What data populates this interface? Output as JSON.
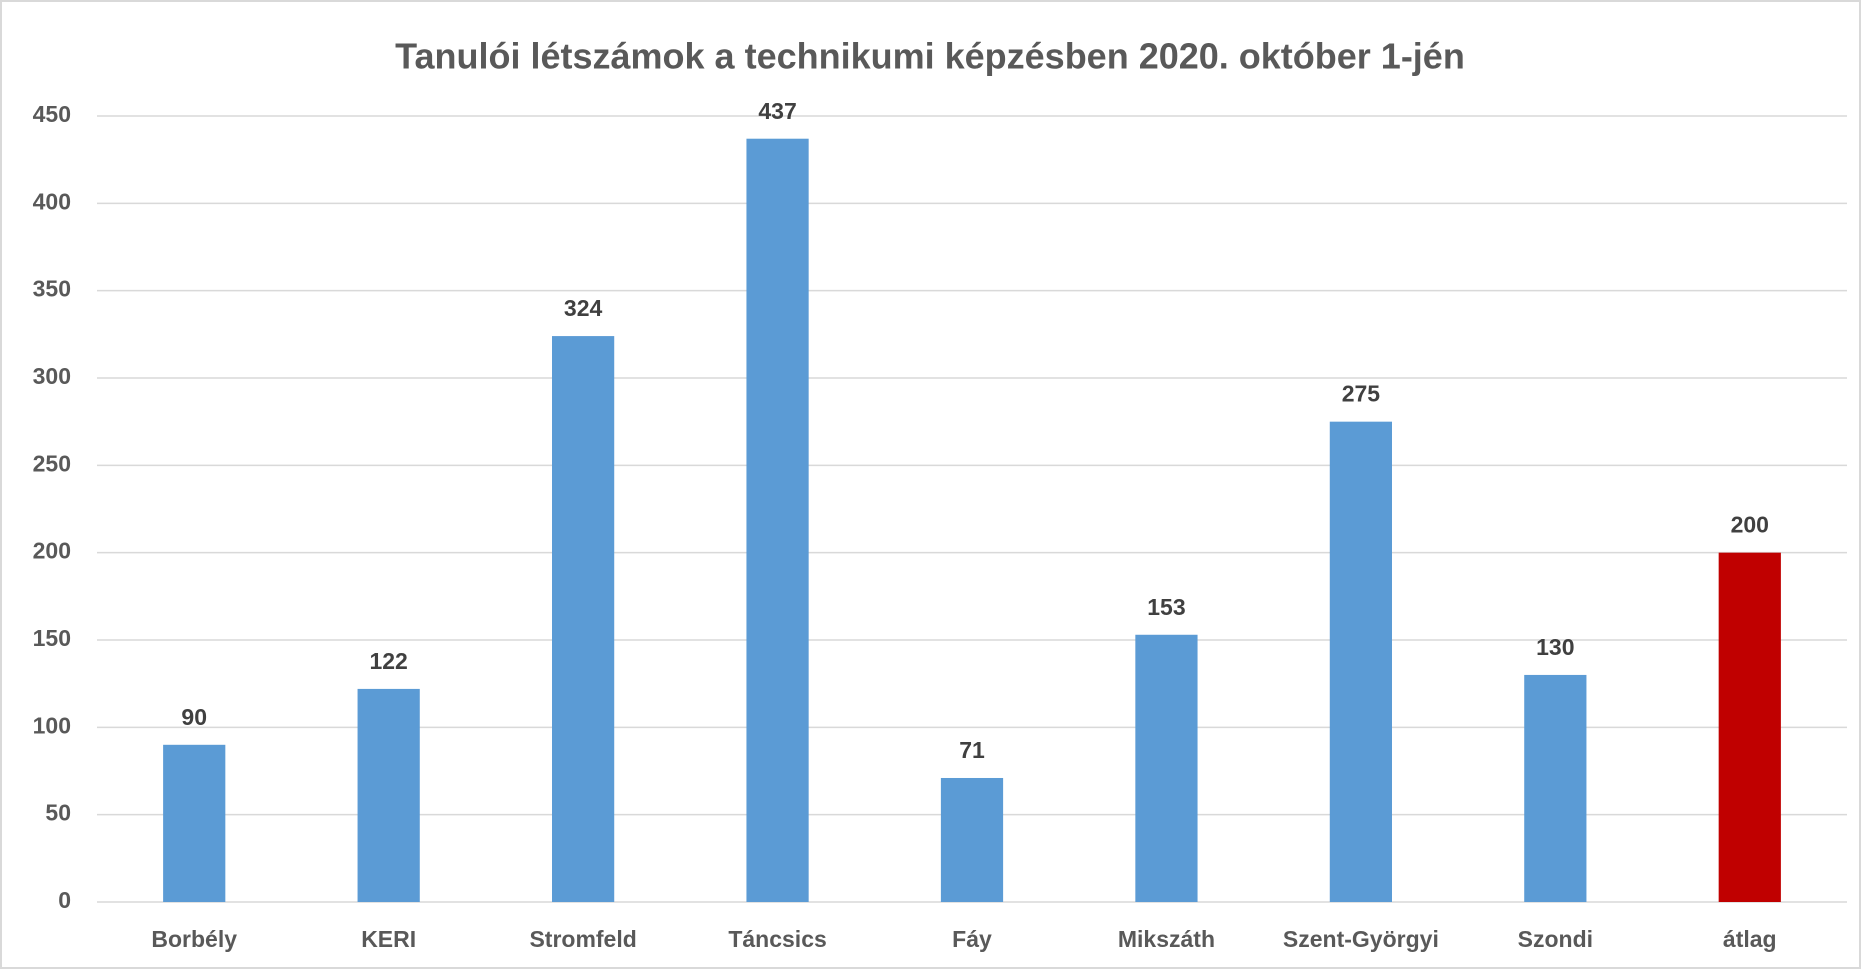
{
  "chart_data": {
    "type": "bar",
    "title": "Tanulói létszámok a technikumi képzésben 2020. október 1-jén",
    "categories": [
      "Borbély",
      "KERI",
      "Stromfeld",
      "Táncsics",
      "Fáy",
      "Mikszáth",
      "Szent-Györgyi",
      "Szondi",
      "átlag"
    ],
    "values": [
      90,
      122,
      324,
      437,
      71,
      153,
      275,
      130,
      200
    ],
    "colors": [
      "#5b9bd5",
      "#5b9bd5",
      "#5b9bd5",
      "#5b9bd5",
      "#5b9bd5",
      "#5b9bd5",
      "#5b9bd5",
      "#5b9bd5",
      "#c00000"
    ],
    "ylim": [
      0,
      450
    ],
    "yticks": [
      0,
      50,
      100,
      150,
      200,
      250,
      300,
      350,
      400,
      450
    ],
    "grid": true
  }
}
